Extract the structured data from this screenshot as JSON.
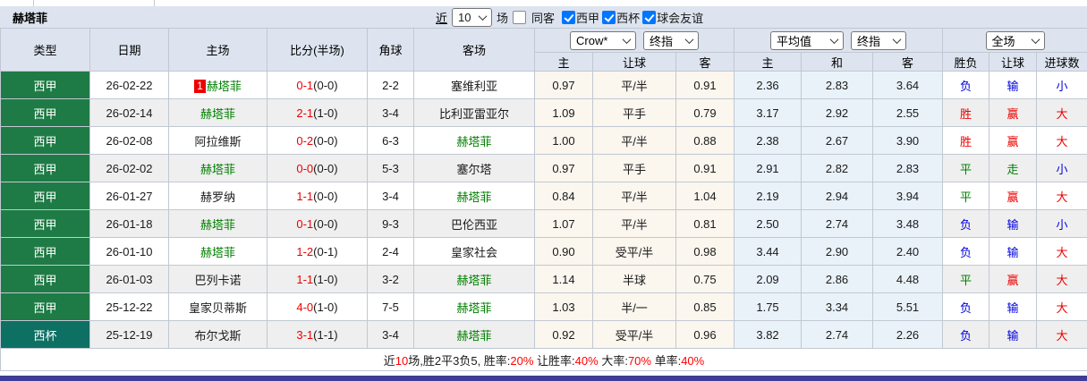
{
  "title": "赫塔菲",
  "colors": {
    "header_bg": "#dde4ef",
    "row_alt": "#efefef",
    "crown_col_bg": "#fbf6ee",
    "avg_col_bg": "#e9f2f9",
    "liga_green": "#1e7b45",
    "copa_teal": "#0e6f63",
    "win_red": "#ee0000",
    "draw_green": "#008000",
    "lose_blue": "#0000e0",
    "team_green": "#008000",
    "checkbox_blue": "#0075ff",
    "accent_bar": "#3c3c99"
  },
  "controls": {
    "recent_label": "近",
    "recent_value": "10",
    "unit_label": "场",
    "same_away": {
      "label": "同客",
      "checked": false
    },
    "filters": [
      {
        "label": "西甲",
        "checked": true
      },
      {
        "label": "西杯",
        "checked": true
      },
      {
        "label": "球会友谊",
        "checked": true
      }
    ]
  },
  "header": {
    "cols": [
      "类型",
      "日期",
      "主场",
      "比分(半场)",
      "角球",
      "客场"
    ],
    "groups": [
      {
        "selects": [
          "Crow*",
          "终指"
        ]
      },
      {
        "selects": [
          "平均值",
          "终指"
        ]
      },
      {
        "selects": [
          "全场"
        ]
      }
    ],
    "sub": [
      "主",
      "让球",
      "客",
      "主",
      "和",
      "客",
      "胜负",
      "让球",
      "进球数"
    ]
  },
  "rows": [
    {
      "league": "西甲",
      "cup": false,
      "date": "26-02-22",
      "home": "赫塔菲",
      "badge": "1",
      "home_active": true,
      "score": "0-1",
      "half": "(0-0)",
      "corner": "2-2",
      "away": "塞维利亚",
      "away_active": false,
      "crown": [
        "0.97",
        "平/半",
        "0.91"
      ],
      "avg": [
        "2.36",
        "2.83",
        "3.64"
      ],
      "results": [
        [
          "负",
          "blue"
        ],
        [
          "输",
          "blue"
        ],
        [
          "小",
          "blue"
        ]
      ]
    },
    {
      "league": "西甲",
      "cup": false,
      "date": "26-02-14",
      "home": "赫塔菲",
      "badge": "",
      "home_active": true,
      "score": "2-1",
      "half": "(1-0)",
      "corner": "3-4",
      "away": "比利亚雷亚尔",
      "away_active": false,
      "crown": [
        "1.09",
        "平手",
        "0.79"
      ],
      "avg": [
        "3.17",
        "2.92",
        "2.55"
      ],
      "results": [
        [
          "胜",
          "red"
        ],
        [
          "赢",
          "red"
        ],
        [
          "大",
          "red"
        ]
      ]
    },
    {
      "league": "西甲",
      "cup": false,
      "date": "26-02-08",
      "home": "阿拉维斯",
      "badge": "",
      "home_active": false,
      "score": "0-2",
      "half": "(0-0)",
      "corner": "6-3",
      "away": "赫塔菲",
      "away_active": true,
      "crown": [
        "1.00",
        "平/半",
        "0.88"
      ],
      "avg": [
        "2.38",
        "2.67",
        "3.90"
      ],
      "results": [
        [
          "胜",
          "red"
        ],
        [
          "赢",
          "red"
        ],
        [
          "大",
          "red"
        ]
      ]
    },
    {
      "league": "西甲",
      "cup": false,
      "date": "26-02-02",
      "home": "赫塔菲",
      "badge": "",
      "home_active": true,
      "score": "0-0",
      "half": "(0-0)",
      "corner": "5-3",
      "away": "塞尔塔",
      "away_active": false,
      "crown": [
        "0.97",
        "平手",
        "0.91"
      ],
      "avg": [
        "2.91",
        "2.82",
        "2.83"
      ],
      "results": [
        [
          "平",
          "green"
        ],
        [
          "走",
          "green"
        ],
        [
          "小",
          "blue"
        ]
      ]
    },
    {
      "league": "西甲",
      "cup": false,
      "date": "26-01-27",
      "home": "赫罗纳",
      "badge": "",
      "home_active": false,
      "score": "1-1",
      "half": "(0-0)",
      "corner": "3-4",
      "away": "赫塔菲",
      "away_active": true,
      "crown": [
        "0.84",
        "平/半",
        "1.04"
      ],
      "avg": [
        "2.19",
        "2.94",
        "3.94"
      ],
      "results": [
        [
          "平",
          "green"
        ],
        [
          "赢",
          "red"
        ],
        [
          "大",
          "red"
        ]
      ]
    },
    {
      "league": "西甲",
      "cup": false,
      "date": "26-01-18",
      "home": "赫塔菲",
      "badge": "",
      "home_active": true,
      "score": "0-1",
      "half": "(0-0)",
      "corner": "9-3",
      "away": "巴伦西亚",
      "away_active": false,
      "crown": [
        "1.07",
        "平/半",
        "0.81"
      ],
      "avg": [
        "2.50",
        "2.74",
        "3.48"
      ],
      "results": [
        [
          "负",
          "blue"
        ],
        [
          "输",
          "blue"
        ],
        [
          "小",
          "blue"
        ]
      ]
    },
    {
      "league": "西甲",
      "cup": false,
      "date": "26-01-10",
      "home": "赫塔菲",
      "badge": "",
      "home_active": true,
      "score": "1-2",
      "half": "(0-1)",
      "corner": "2-4",
      "away": "皇家社会",
      "away_active": false,
      "crown": [
        "0.90",
        "受平/半",
        "0.98"
      ],
      "avg": [
        "3.44",
        "2.90",
        "2.40"
      ],
      "results": [
        [
          "负",
          "blue"
        ],
        [
          "输",
          "blue"
        ],
        [
          "大",
          "red"
        ]
      ]
    },
    {
      "league": "西甲",
      "cup": false,
      "date": "26-01-03",
      "home": "巴列卡诺",
      "badge": "",
      "home_active": false,
      "score": "1-1",
      "half": "(1-0)",
      "corner": "3-2",
      "away": "赫塔菲",
      "away_active": true,
      "crown": [
        "1.14",
        "半球",
        "0.75"
      ],
      "avg": [
        "2.09",
        "2.86",
        "4.48"
      ],
      "results": [
        [
          "平",
          "green"
        ],
        [
          "赢",
          "red"
        ],
        [
          "大",
          "red"
        ]
      ]
    },
    {
      "league": "西甲",
      "cup": false,
      "date": "25-12-22",
      "home": "皇家贝蒂斯",
      "badge": "",
      "home_active": false,
      "score": "4-0",
      "half": "(1-0)",
      "corner": "7-5",
      "away": "赫塔菲",
      "away_active": true,
      "crown": [
        "1.03",
        "半/一",
        "0.85"
      ],
      "avg": [
        "1.75",
        "3.34",
        "5.51"
      ],
      "results": [
        [
          "负",
          "blue"
        ],
        [
          "输",
          "blue"
        ],
        [
          "大",
          "red"
        ]
      ]
    },
    {
      "league": "西杯",
      "cup": true,
      "date": "25-12-19",
      "home": "布尔戈斯",
      "badge": "",
      "home_active": false,
      "score": "3-1",
      "half": "(1-1)",
      "corner": "3-4",
      "away": "赫塔菲",
      "away_active": true,
      "crown": [
        "0.92",
        "受平/半",
        "0.96"
      ],
      "avg": [
        "3.82",
        "2.74",
        "2.26"
      ],
      "results": [
        [
          "负",
          "blue"
        ],
        [
          "输",
          "blue"
        ],
        [
          "大",
          "red"
        ]
      ]
    }
  ],
  "summary": [
    {
      "t": "近",
      "red": false
    },
    {
      "t": "10",
      "red": true
    },
    {
      "t": "场,胜2平3负5, 胜率:",
      "red": false
    },
    {
      "t": "20%",
      "red": true
    },
    {
      "t": " 让胜率:",
      "red": false
    },
    {
      "t": "40%",
      "red": true
    },
    {
      "t": " 大率:",
      "red": false
    },
    {
      "t": "70%",
      "red": true
    },
    {
      "t": " 单率:",
      "red": false
    },
    {
      "t": "40%",
      "red": true
    }
  ]
}
